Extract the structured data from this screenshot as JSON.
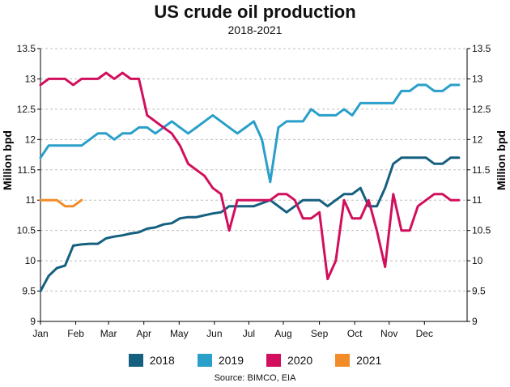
{
  "chart_data": {
    "type": "line",
    "title": "US crude oil production",
    "subtitle": "2018-2021",
    "ylabel_left": "Million bpd",
    "ylabel_right": "Million bpd",
    "xlabel": "",
    "ylim": [
      9,
      13.5
    ],
    "xlim": [
      0,
      52
    ],
    "yticks": [
      "9",
      "9.5",
      "10",
      "10.5",
      "11",
      "11.5",
      "12",
      "12.5",
      "13",
      "13.5"
    ],
    "ytick_values": [
      9,
      9.5,
      10,
      10.5,
      11,
      11.5,
      12,
      12.5,
      13,
      13.5
    ],
    "month_ticks": [
      "Jan",
      "Feb",
      "Mar",
      "Apr",
      "May",
      "Jun",
      "Jul",
      "Aug",
      "Sep",
      "Oct",
      "Nov",
      "Dec"
    ],
    "month_tick_weeks": [
      0,
      4.3,
      8.3,
      12.6,
      16.9,
      21.2,
      25.4,
      29.6,
      34.0,
      38.3,
      42.5,
      46.8
    ],
    "grid": true,
    "legend_position": "bottom",
    "series": [
      {
        "name": "2018",
        "color": "#155f7f",
        "x": [
          0,
          1,
          2,
          3,
          4,
          5,
          6,
          7,
          8,
          9,
          10,
          11,
          12,
          13,
          14,
          15,
          16,
          17,
          18,
          19,
          20,
          21,
          22,
          23,
          24,
          25,
          26,
          27,
          28,
          29,
          30,
          31,
          32,
          33,
          34,
          35,
          36,
          37,
          38,
          39,
          40,
          41,
          42,
          43,
          44,
          45,
          46,
          47,
          48,
          49,
          50,
          51
        ],
        "values": [
          9.5,
          9.75,
          9.88,
          9.92,
          10.25,
          10.27,
          10.28,
          10.28,
          10.37,
          10.4,
          10.42,
          10.45,
          10.47,
          10.53,
          10.55,
          10.6,
          10.62,
          10.7,
          10.72,
          10.72,
          10.75,
          10.78,
          10.8,
          10.9,
          10.9,
          10.9,
          10.9,
          10.95,
          11.0,
          10.9,
          10.8,
          10.9,
          11.0,
          11.0,
          11.0,
          10.9,
          11.0,
          11.1,
          11.1,
          11.2,
          10.9,
          10.9,
          11.2,
          11.6,
          11.7,
          11.7,
          11.7,
          11.7,
          11.6,
          11.6,
          11.7,
          11.7
        ]
      },
      {
        "name": "2019",
        "color": "#2a9fc9",
        "x": [
          0,
          1,
          2,
          3,
          4,
          5,
          6,
          7,
          8,
          9,
          10,
          11,
          12,
          13,
          14,
          15,
          16,
          17,
          18,
          19,
          20,
          21,
          22,
          23,
          24,
          25,
          26,
          27,
          28,
          29,
          30,
          31,
          32,
          33,
          34,
          35,
          36,
          37,
          38,
          39,
          40,
          41,
          42,
          43,
          44,
          45,
          46,
          47,
          48,
          49,
          50,
          51
        ],
        "values": [
          11.7,
          11.9,
          11.9,
          11.9,
          11.9,
          11.9,
          12.0,
          12.1,
          12.1,
          12.0,
          12.1,
          12.1,
          12.2,
          12.2,
          12.1,
          12.2,
          12.3,
          12.2,
          12.1,
          12.2,
          12.3,
          12.4,
          12.3,
          12.2,
          12.1,
          12.2,
          12.3,
          12.0,
          11.3,
          12.2,
          12.3,
          12.3,
          12.3,
          12.5,
          12.4,
          12.4,
          12.4,
          12.5,
          12.4,
          12.6,
          12.6,
          12.6,
          12.6,
          12.6,
          12.8,
          12.8,
          12.9,
          12.9,
          12.8,
          12.8,
          12.9,
          12.9
        ]
      },
      {
        "name": "2020",
        "color": "#d10f5c",
        "x": [
          0,
          1,
          2,
          3,
          4,
          5,
          6,
          7,
          8,
          9,
          10,
          11,
          12,
          13,
          14,
          15,
          16,
          17,
          18,
          19,
          20,
          21,
          22,
          23,
          24,
          25,
          26,
          27,
          28,
          29,
          30,
          31,
          32,
          33,
          34,
          35,
          36,
          37,
          38,
          39,
          40,
          41,
          42,
          43,
          44,
          45,
          46,
          47,
          48,
          49,
          50,
          51
        ],
        "values": [
          12.9,
          13.0,
          13.0,
          13.0,
          12.9,
          13.0,
          13.0,
          13.0,
          13.1,
          13.0,
          13.1,
          13.0,
          13.0,
          12.4,
          12.3,
          12.2,
          12.1,
          11.9,
          11.6,
          11.5,
          11.4,
          11.2,
          11.1,
          10.5,
          11.0,
          11.0,
          11.0,
          11.0,
          11.0,
          11.1,
          11.1,
          11.0,
          10.7,
          10.7,
          10.8,
          9.7,
          10.0,
          11.0,
          10.7,
          10.7,
          11.0,
          10.5,
          9.9,
          11.1,
          10.5,
          10.5,
          10.9,
          11.0,
          11.1,
          11.1,
          11.0,
          11.0
        ]
      },
      {
        "name": "2021",
        "color": "#f28c28",
        "x": [
          0,
          1,
          2,
          3,
          4,
          5
        ],
        "values": [
          11.0,
          11.0,
          11.0,
          10.9,
          10.9,
          11.0
        ]
      }
    ],
    "source": "Source: BIMCO, EIA"
  }
}
